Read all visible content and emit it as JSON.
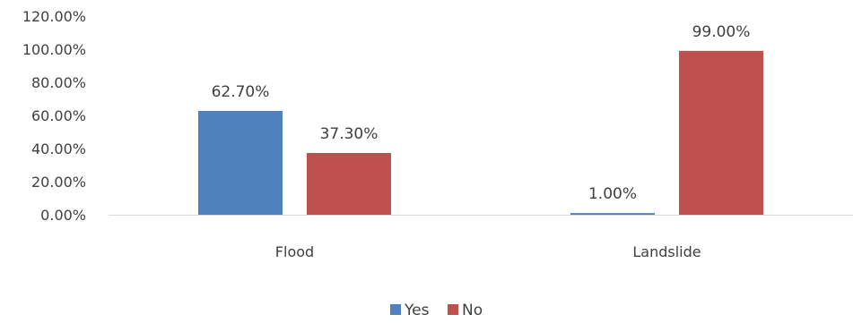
{
  "chart_data": {
    "type": "bar",
    "categories": [
      "Flood",
      "Landslide"
    ],
    "series": [
      {
        "name": "Yes",
        "values": [
          62.7,
          1.0
        ],
        "color": "#4F81BD"
      },
      {
        "name": "No",
        "values": [
          37.3,
          99.0
        ],
        "color": "#C0504D"
      }
    ],
    "data_labels": [
      [
        "62.70%",
        "1.00%"
      ],
      [
        "37.30%",
        "99.00%"
      ]
    ],
    "y_ticks": [
      "0.00%",
      "20.00%",
      "40.00%",
      "60.00%",
      "80.00%",
      "100.00%",
      "120.00%"
    ],
    "ylim": [
      0,
      120
    ],
    "title": "",
    "xlabel": "",
    "ylabel": "",
    "grid": false,
    "legend_position": "bottom"
  }
}
